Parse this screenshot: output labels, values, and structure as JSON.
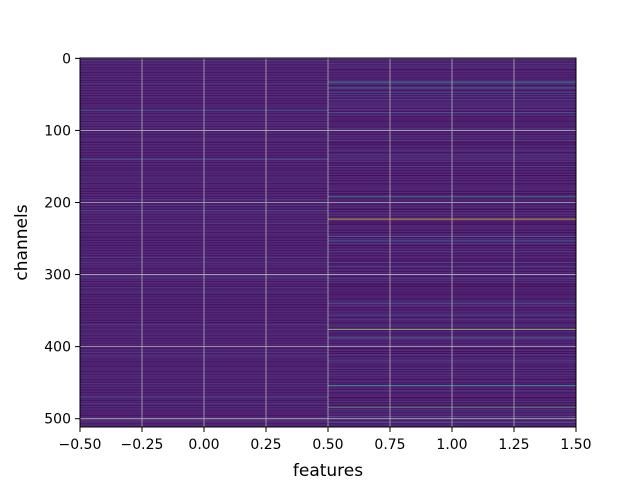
{
  "chart_data": {
    "type": "heatmap",
    "title": "",
    "xlabel": "features",
    "ylabel": "channels",
    "xlim": [
      -0.5,
      1.5
    ],
    "ylim": [
      511.5,
      -0.5
    ],
    "x_ticks": [
      -0.5,
      -0.25,
      0.0,
      0.25,
      0.5,
      0.75,
      1.0,
      1.25,
      1.5
    ],
    "x_tick_labels": [
      "−0.50",
      "−0.25",
      "0.00",
      "0.25",
      "0.50",
      "0.75",
      "1.00",
      "1.25",
      "1.50"
    ],
    "y_ticks": [
      0,
      100,
      200,
      300,
      400,
      500
    ],
    "y_tick_labels": [
      "0",
      "100",
      "200",
      "300",
      "400",
      "500"
    ],
    "n_channels": 512,
    "columns": [
      0,
      1
    ],
    "colormap": "viridis",
    "grid": true,
    "column_0_base_level": 0.05,
    "column_1_base_level": 0.03,
    "highlights": [
      {
        "column": 1,
        "channel": 33,
        "value": 0.55
      },
      {
        "column": 1,
        "channel": 41,
        "value": 0.42
      },
      {
        "column": 1,
        "channel": 192,
        "value": 0.55
      },
      {
        "column": 1,
        "channel": 223,
        "value": 0.95
      },
      {
        "column": 1,
        "channel": 247,
        "value": 0.35
      },
      {
        "column": 1,
        "channel": 253,
        "value": 0.3
      },
      {
        "column": 1,
        "channel": 376,
        "value": 0.82
      },
      {
        "column": 1,
        "channel": 388,
        "value": 0.45
      },
      {
        "column": 1,
        "channel": 454,
        "value": 0.58
      },
      {
        "column": 1,
        "channel": 484,
        "value": 0.7
      },
      {
        "column": 1,
        "channel": 497,
        "value": 0.25
      },
      {
        "column": 1,
        "channel": 75,
        "value": 0.22
      },
      {
        "column": 1,
        "channel": 150,
        "value": 0.2
      },
      {
        "column": 1,
        "channel": 305,
        "value": 0.22
      },
      {
        "column": 1,
        "channel": 420,
        "value": 0.2
      },
      {
        "column": 0,
        "channel": 72,
        "value": 0.3
      },
      {
        "column": 0,
        "channel": 140,
        "value": 0.22
      },
      {
        "column": 0,
        "channel": 370,
        "value": 0.22
      },
      {
        "column": 0,
        "channel": 470,
        "value": 0.28
      },
      {
        "column": 0,
        "channel": 503,
        "value": 0.2
      }
    ]
  }
}
